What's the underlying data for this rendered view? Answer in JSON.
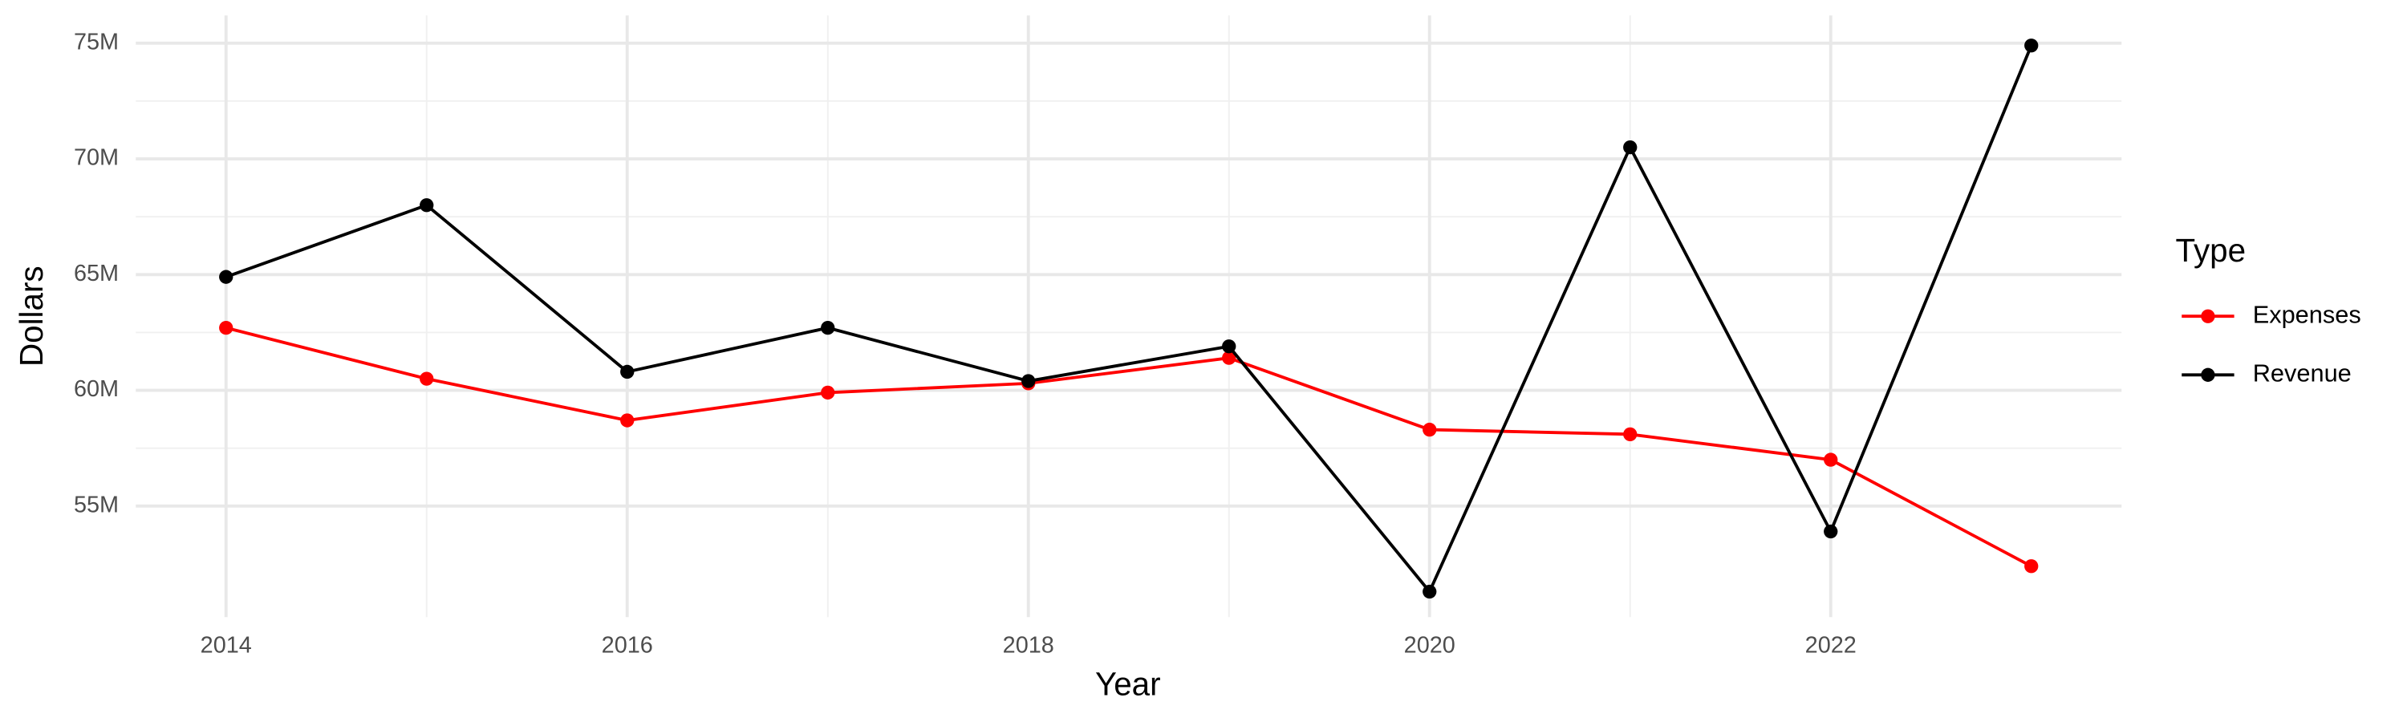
{
  "chart_data": {
    "type": "line",
    "x_label": "Year",
    "y_label": "Dollars",
    "x": [
      2014,
      2015,
      2016,
      2017,
      2018,
      2019,
      2020,
      2021,
      2022,
      2023
    ],
    "series": [
      {
        "name": "Expenses",
        "color": "#ff0000",
        "values": [
          62700000,
          60500000,
          58700000,
          59900000,
          60300000,
          61400000,
          58300000,
          58100000,
          57000000,
          52400000
        ]
      },
      {
        "name": "Revenue",
        "color": "#000000",
        "values": [
          64900000,
          68000000,
          60800000,
          62700000,
          60400000,
          61900000,
          51300000,
          70500000,
          53900000,
          74900000
        ]
      }
    ],
    "xlim": [
      2013.55,
      2023.45
    ],
    "xticks": [
      2014,
      2016,
      2018,
      2020,
      2022
    ],
    "ylim": [
      50200000,
      76200000
    ],
    "yticks": [
      {
        "value": 55000000,
        "label": "55M"
      },
      {
        "value": 60000000,
        "label": "60M"
      },
      {
        "value": 65000000,
        "label": "65M"
      },
      {
        "value": 70000000,
        "label": "70M"
      },
      {
        "value": 75000000,
        "label": "75M"
      }
    ],
    "grid": true,
    "legend_title": "Type",
    "legend_position": "right"
  }
}
